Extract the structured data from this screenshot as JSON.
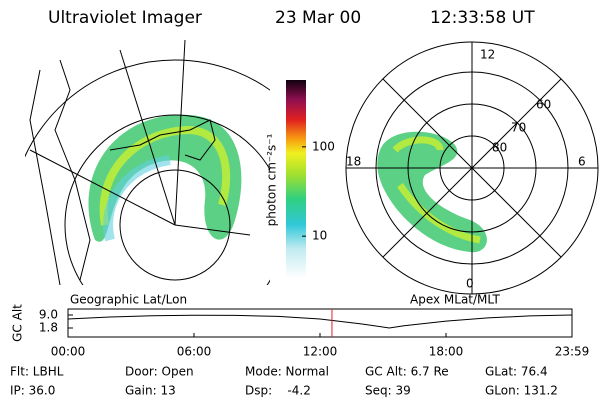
{
  "header": {
    "instrument": "Ultraviolet Imager",
    "date": "23 Mar 00",
    "time": "12:33:58 UT"
  },
  "geographic_panel": {
    "label": "Geographic Lat/Lon"
  },
  "colorbar": {
    "label": "photon cm⁻²s⁻¹",
    "log": true,
    "ylim": [
      3.4,
      560
    ],
    "yticks": [
      10,
      100
    ]
  },
  "polar_panel": {
    "label": "Apex MLat/MLT",
    "mlt_labels": [
      "12",
      "18",
      "6",
      "0"
    ],
    "lat_labels": [
      "60",
      "70",
      "80"
    ]
  },
  "altitude_plot": {
    "ylabel": "GC Alt",
    "yticks": [
      {
        "value": 1.8,
        "label": "1.8"
      },
      {
        "value": 9,
        "label": "9.0"
      }
    ],
    "xlabels": [
      "00:00",
      "06:00",
      "12:00",
      "18:00",
      "23:59"
    ],
    "x": [
      0,
      2,
      4,
      6,
      8,
      10,
      12,
      14,
      15.3,
      16,
      18,
      20,
      22,
      24
    ],
    "values": [
      6.8,
      7.9,
      8.6,
      8.9,
      8.8,
      8.2,
      6.8,
      4.0,
      1.8,
      3.0,
      5.6,
      7.4,
      8.5,
      9.0
    ],
    "marker_hour": 12.57
  },
  "info": [
    [
      "Flt: LBHL",
      "Door: Open",
      "Mode: Normal",
      "GC Alt: 6.7 Re",
      "GLat: 76.4"
    ],
    [
      "IP: 36.0",
      "Gain: 13",
      "Dsp:    -4.2",
      "Seq: 39",
      "GLon: 131.2"
    ]
  ]
}
